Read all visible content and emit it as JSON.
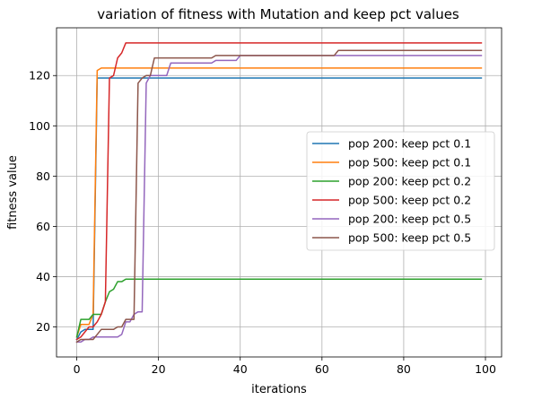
{
  "chart_data": {
    "type": "line",
    "title": "variation of fitness with Mutation and keep pct values",
    "xlabel": "iterations",
    "ylabel": "fitness value",
    "xlim": [
      -4.95,
      103.95
    ],
    "ylim": [
      8.05,
      139.0
    ],
    "xticks": [
      0,
      20,
      40,
      60,
      80,
      100
    ],
    "yticks": [
      20,
      40,
      60,
      80,
      100,
      120
    ],
    "grid": true,
    "legend_position": "center-right",
    "series": [
      {
        "name": " pop 200: keep pct 0.1",
        "color": "#1f77b4",
        "points": [
          [
            0,
            15
          ],
          [
            1,
            18
          ],
          [
            2,
            19
          ],
          [
            3,
            19
          ],
          [
            4,
            19
          ],
          [
            5,
            119
          ],
          [
            99,
            119
          ]
        ]
      },
      {
        "name": " pop 500: keep pct 0.1",
        "color": "#ff7f0e",
        "points": [
          [
            0,
            16
          ],
          [
            1,
            21
          ],
          [
            2,
            21
          ],
          [
            3,
            21
          ],
          [
            4,
            25
          ],
          [
            5,
            122
          ],
          [
            6,
            123
          ],
          [
            99,
            123
          ]
        ]
      },
      {
        "name": " pop 200: keep pct 0.2",
        "color": "#2ca02c",
        "points": [
          [
            0,
            16
          ],
          [
            1,
            23
          ],
          [
            2,
            23
          ],
          [
            3,
            23
          ],
          [
            4,
            25
          ],
          [
            5,
            25
          ],
          [
            6,
            25
          ],
          [
            7,
            30
          ],
          [
            8,
            34
          ],
          [
            9,
            35
          ],
          [
            10,
            38
          ],
          [
            11,
            38
          ],
          [
            12,
            39
          ],
          [
            99,
            39
          ]
        ]
      },
      {
        "name": " pop 500: keep pct 0.2",
        "color": "#d62728",
        "points": [
          [
            0,
            15
          ],
          [
            1,
            16
          ],
          [
            2,
            18
          ],
          [
            3,
            20
          ],
          [
            4,
            20
          ],
          [
            5,
            22
          ],
          [
            6,
            25
          ],
          [
            7,
            30
          ],
          [
            8,
            119
          ],
          [
            9,
            120
          ],
          [
            10,
            127
          ],
          [
            11,
            129
          ],
          [
            12,
            133
          ],
          [
            99,
            133
          ]
        ]
      },
      {
        "name": " pop 200: keep pct 0.5",
        "color": "#9467bd",
        "points": [
          [
            0,
            14
          ],
          [
            1,
            14
          ],
          [
            2,
            15
          ],
          [
            3,
            15
          ],
          [
            4,
            16
          ],
          [
            5,
            16
          ],
          [
            6,
            16
          ],
          [
            7,
            16
          ],
          [
            8,
            16
          ],
          [
            9,
            16
          ],
          [
            10,
            16
          ],
          [
            11,
            17
          ],
          [
            12,
            22
          ],
          [
            13,
            22
          ],
          [
            14,
            25
          ],
          [
            15,
            26
          ],
          [
            16,
            26
          ],
          [
            17,
            117
          ],
          [
            18,
            120
          ],
          [
            19,
            120
          ],
          [
            20,
            120
          ],
          [
            21,
            120
          ],
          [
            22,
            120
          ],
          [
            23,
            125
          ],
          [
            33,
            125
          ],
          [
            34,
            126
          ],
          [
            39,
            126
          ],
          [
            40,
            128
          ],
          [
            99,
            128
          ]
        ]
      },
      {
        "name": " pop 500: keep pct 0.5",
        "color": "#8c564b",
        "points": [
          [
            0,
            14
          ],
          [
            1,
            15
          ],
          [
            2,
            15
          ],
          [
            3,
            15
          ],
          [
            4,
            15
          ],
          [
            5,
            17
          ],
          [
            6,
            19
          ],
          [
            7,
            19
          ],
          [
            8,
            19
          ],
          [
            9,
            19
          ],
          [
            10,
            20
          ],
          [
            11,
            20
          ],
          [
            12,
            23
          ],
          [
            13,
            23
          ],
          [
            14,
            23
          ],
          [
            15,
            117
          ],
          [
            16,
            119
          ],
          [
            17,
            120
          ],
          [
            18,
            120
          ],
          [
            19,
            127
          ],
          [
            33,
            127
          ],
          [
            34,
            128
          ],
          [
            63,
            128
          ],
          [
            64,
            130
          ],
          [
            99,
            130
          ]
        ]
      }
    ]
  }
}
